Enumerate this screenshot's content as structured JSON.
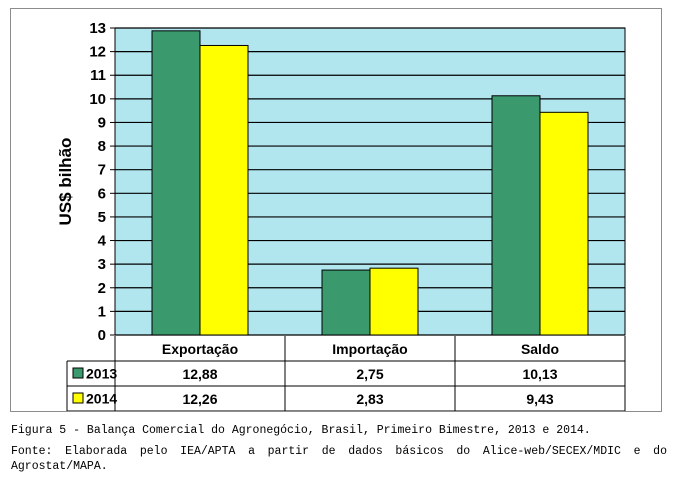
{
  "chart_data": {
    "type": "bar",
    "title": "",
    "xlabel": "",
    "ylabel": "US$ bilhão",
    "ylim": [
      0,
      13
    ],
    "yticks": [
      0,
      1,
      2,
      3,
      4,
      5,
      6,
      7,
      8,
      9,
      10,
      11,
      12,
      13
    ],
    "grid": true,
    "legend": "data-table-left",
    "categories": [
      "Exportação",
      "Importação",
      "Saldo"
    ],
    "series": [
      {
        "name": "2013",
        "color": "#3a9a6e",
        "values": [
          12.88,
          2.75,
          10.13
        ],
        "labels": [
          "12,88",
          "2,75",
          "10,13"
        ]
      },
      {
        "name": "2014",
        "color": "#ffff00",
        "values": [
          12.26,
          2.83,
          9.43
        ],
        "labels": [
          "12,26",
          "2,83",
          "9,43"
        ]
      }
    ],
    "plot_background": "#b2e6ef"
  },
  "caption": {
    "figure": "Figura 5 - Balança Comercial do Agronegócio, Brasil, Primeiro Bimestre, 2013 e 2014.",
    "source": "Fonte: Elaborada pelo IEA/APTA a partir de dados básicos do Alice-web/SECEX/MDIC e do Agrostat/MAPA."
  }
}
